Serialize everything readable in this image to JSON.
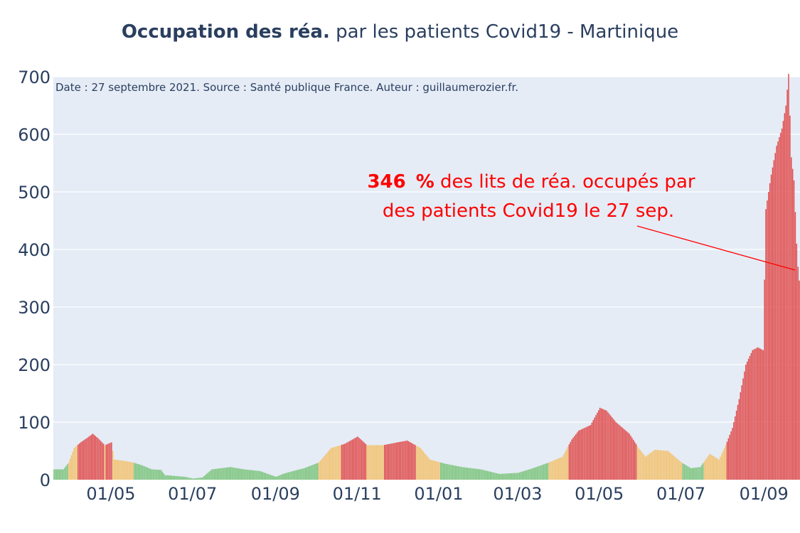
{
  "title": {
    "bold": "Occupation des réa.",
    "rest": " par les patients Covid19 - Martinique"
  },
  "colors": {
    "green": "#7cc47c",
    "orange": "#f3c26f",
    "red": "#e04d4d",
    "plot_bg": "#e5ecf6",
    "text": "#2a3f5f",
    "annotation": "#ff0000"
  },
  "chart_data": {
    "type": "bar",
    "note": "Date : 27 septembre 2021. Source : Santé publique France. Auteur : guillaumerozier.fr.",
    "y_ticks": [
      0,
      100,
      200,
      300,
      400,
      500,
      600,
      700
    ],
    "ylim": [
      0,
      700
    ],
    "x_ticks": [
      {
        "label": "01/05",
        "date": "2020-05-01"
      },
      {
        "label": "01/07",
        "date": "2020-07-01"
      },
      {
        "label": "01/09",
        "date": "2020-09-01"
      },
      {
        "label": "01/11",
        "date": "2020-11-01"
      },
      {
        "label": "01/01",
        "date": "2021-01-01"
      },
      {
        "label": "01/03",
        "date": "2021-03-01"
      },
      {
        "label": "01/05",
        "date": "2021-05-01"
      },
      {
        "label": "01/07",
        "date": "2021-07-01"
      },
      {
        "label": "01/09",
        "date": "2021-09-01"
      }
    ],
    "x_range": [
      "2020-03-19",
      "2021-09-28"
    ],
    "grid": true,
    "color_rule": "green < 30%, orange 30-60%, red > 60%",
    "series": [
      {
        "unit": "% des lits de réa. occupés",
        "points": [
          [
            "2020-03-19",
            18
          ],
          [
            "2020-03-26",
            18
          ],
          [
            "2020-03-30",
            30
          ],
          [
            "2020-04-03",
            55
          ],
          [
            "2020-04-08",
            65
          ],
          [
            "2020-04-13",
            73
          ],
          [
            "2020-04-17",
            80
          ],
          [
            "2020-04-21",
            72
          ],
          [
            "2020-04-26",
            60
          ],
          [
            "2020-05-01",
            65
          ],
          [
            "2020-05-03",
            35
          ],
          [
            "2020-05-10",
            33
          ],
          [
            "2020-05-17",
            30
          ],
          [
            "2020-05-24",
            25
          ],
          [
            "2020-05-31",
            18
          ],
          [
            "2020-06-07",
            17
          ],
          [
            "2020-06-10",
            8
          ],
          [
            "2020-06-25",
            5
          ],
          [
            "2020-07-01",
            2
          ],
          [
            "2020-07-08",
            4
          ],
          [
            "2020-07-15",
            18
          ],
          [
            "2020-07-29",
            22
          ],
          [
            "2020-08-08",
            18
          ],
          [
            "2020-08-20",
            15
          ],
          [
            "2020-09-01",
            5
          ],
          [
            "2020-09-06",
            10
          ],
          [
            "2020-09-12",
            14
          ],
          [
            "2020-09-22",
            20
          ],
          [
            "2020-10-03",
            30
          ],
          [
            "2020-10-12",
            55
          ],
          [
            "2020-10-22",
            62
          ],
          [
            "2020-11-01",
            75
          ],
          [
            "2020-11-08",
            60
          ],
          [
            "2020-11-20",
            60
          ],
          [
            "2020-12-01",
            65
          ],
          [
            "2020-12-08",
            68
          ],
          [
            "2020-12-18",
            55
          ],
          [
            "2020-12-25",
            35
          ],
          [
            "2021-01-05",
            28
          ],
          [
            "2021-01-18",
            22
          ],
          [
            "2021-02-01",
            18
          ],
          [
            "2021-02-15",
            10
          ],
          [
            "2021-03-01",
            12
          ],
          [
            "2021-03-12",
            20
          ],
          [
            "2021-03-24",
            30
          ],
          [
            "2021-04-03",
            40
          ],
          [
            "2021-04-10",
            70
          ],
          [
            "2021-04-15",
            85
          ],
          [
            "2021-04-24",
            95
          ],
          [
            "2021-05-01",
            125
          ],
          [
            "2021-05-06",
            120
          ],
          [
            "2021-05-13",
            100
          ],
          [
            "2021-05-23",
            80
          ],
          [
            "2021-05-30",
            55
          ],
          [
            "2021-06-04",
            40
          ],
          [
            "2021-06-11",
            52
          ],
          [
            "2021-06-21",
            50
          ],
          [
            "2021-07-01",
            30
          ],
          [
            "2021-07-08",
            20
          ],
          [
            "2021-07-15",
            22
          ],
          [
            "2021-07-22",
            45
          ],
          [
            "2021-07-29",
            35
          ],
          [
            "2021-08-03",
            60
          ],
          [
            "2021-08-08",
            90
          ],
          [
            "2021-08-13",
            140
          ],
          [
            "2021-08-18",
            200
          ],
          [
            "2021-08-23",
            225
          ],
          [
            "2021-08-27",
            230
          ],
          [
            "2021-08-31",
            225
          ],
          [
            "2021-09-02",
            470
          ],
          [
            "2021-09-06",
            530
          ],
          [
            "2021-09-10",
            580
          ],
          [
            "2021-09-14",
            610
          ],
          [
            "2021-09-17",
            650
          ],
          [
            "2021-09-19",
            705
          ],
          [
            "2021-09-21",
            560
          ],
          [
            "2021-09-23",
            520
          ],
          [
            "2021-09-25",
            410
          ],
          [
            "2021-09-26",
            370
          ],
          [
            "2021-09-27",
            346
          ]
        ]
      }
    ],
    "annotation": {
      "value": "346",
      "pct": "%",
      "line1_rest": " des lits de réa. occupés par",
      "line2": "des patients Covid19 le 27 sep."
    }
  }
}
